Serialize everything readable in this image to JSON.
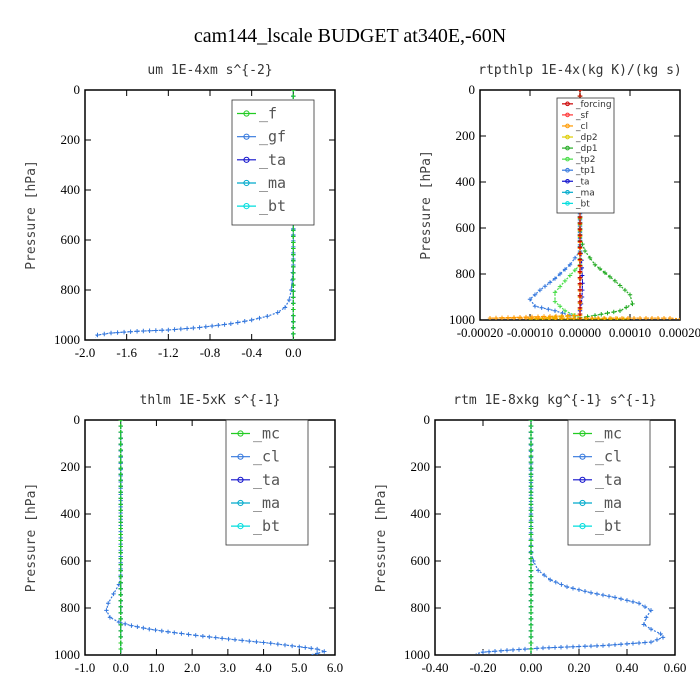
{
  "figure": {
    "title": "cam144_lscale  BUDGET at340E,-60N"
  },
  "chart_data": [
    {
      "type": "line",
      "title": "um  1E-4xm s^{-2}",
      "ylabel": "Pressure [hPa]",
      "xlabel": "",
      "xlim": [
        -2.0,
        0.4
      ],
      "ylim": [
        0,
        1000
      ],
      "y_inverted": true,
      "xticks": [
        -2.0,
        -1.6,
        -1.2,
        -0.8,
        -0.4,
        0.0
      ],
      "xtick_labels": [
        "-2.0",
        "-1.6",
        "-1.2",
        "-0.8",
        "-0.4",
        "0.0"
      ],
      "yticks": [
        0,
        200,
        400,
        600,
        800,
        1000
      ],
      "ytick_labels": [
        "0",
        "200",
        "400",
        "600",
        "800",
        "1000"
      ],
      "legend_position": "top-right",
      "series": [
        {
          "name": "_f",
          "color": "#22cc22",
          "points": [
            [
              0,
              0
            ],
            [
              0,
              1000
            ]
          ]
        },
        {
          "name": "_gf",
          "color": "#3377dd",
          "points": [
            [
              0,
              0
            ],
            [
              0,
              700
            ],
            [
              -0.01,
              760
            ],
            [
              -0.02,
              800
            ],
            [
              -0.04,
              840
            ],
            [
              -0.08,
              870
            ],
            [
              -0.15,
              890
            ],
            [
              -0.25,
              905
            ],
            [
              -0.4,
              920
            ],
            [
              -0.6,
              935
            ],
            [
              -0.9,
              950
            ],
            [
              -1.2,
              960
            ],
            [
              -1.5,
              965
            ],
            [
              -1.75,
              972
            ],
            [
              -1.88,
              980
            ],
            [
              -1.9,
              990
            ]
          ]
        },
        {
          "name": "_ta",
          "color": "#1111cc",
          "points": [
            [
              0,
              0
            ],
            [
              0,
              1000
            ]
          ]
        },
        {
          "name": "_ma",
          "color": "#00aacc",
          "points": [
            [
              0,
              0
            ],
            [
              0,
              1000
            ]
          ]
        },
        {
          "name": "_bt",
          "color": "#00dddd",
          "points": [
            [
              0,
              0
            ],
            [
              0,
              1000
            ]
          ]
        }
      ]
    },
    {
      "type": "line",
      "title": "rtpthlp  1E-4x(kg K)/(kg s)",
      "ylabel": "Pressure [hPa]",
      "xlabel": "",
      "xlim": [
        -0.0002,
        0.0002
      ],
      "ylim": [
        0,
        1000
      ],
      "y_inverted": true,
      "xticks": [
        -0.0002,
        -0.0001,
        0.0,
        0.0001,
        0.0002
      ],
      "xtick_labels": [
        "-0.00020",
        "-0.00010",
        "0.00000",
        "0.00010",
        "0.00020"
      ],
      "yticks": [
        0,
        200,
        400,
        600,
        800,
        1000
      ],
      "ytick_labels": [
        "0",
        "200",
        "400",
        "600",
        "800",
        "1000"
      ],
      "legend_position": "top-right",
      "series": [
        {
          "name": "_forcing",
          "color": "#cc0000",
          "points": [
            [
              0,
              0
            ],
            [
              0,
              1000
            ]
          ]
        },
        {
          "name": "_sf",
          "color": "#ff3333",
          "points": [
            [
              0,
              0
            ],
            [
              0,
              1000
            ]
          ]
        },
        {
          "name": "_cl",
          "color": "#ff9900",
          "points": [
            [
              0,
              0
            ],
            [
              0,
              980
            ],
            [
              -0.00018,
              992
            ],
            [
              0.00018,
              992
            ],
            [
              0.0002,
              995
            ]
          ]
        },
        {
          "name": "_dp2",
          "color": "#ddcc00",
          "points": [
            [
              0,
              0
            ],
            [
              0,
              980
            ],
            [
              -0.0001,
              995
            ],
            [
              0.0001,
              995
            ]
          ]
        },
        {
          "name": "_dp1",
          "color": "#22aa22",
          "points": [
            [
              0,
              0
            ],
            [
              0,
              640
            ],
            [
              1e-05,
              700
            ],
            [
              3e-05,
              760
            ],
            [
              7e-05,
              830
            ],
            [
              0.0001,
              890
            ],
            [
              0.000105,
              930
            ],
            [
              8e-05,
              960
            ],
            [
              3e-05,
              980
            ],
            [
              0,
              990
            ]
          ]
        },
        {
          "name": "_tp2",
          "color": "#44dd44",
          "points": [
            [
              0,
              0
            ],
            [
              0,
              760
            ],
            [
              -3e-05,
              830
            ],
            [
              -5e-05,
              880
            ],
            [
              -5e-05,
              920
            ],
            [
              -3e-05,
              960
            ],
            [
              -1e-05,
              980
            ],
            [
              0,
              990
            ]
          ]
        },
        {
          "name": "_tp1",
          "color": "#3377dd",
          "points": [
            [
              0,
              0
            ],
            [
              0,
              700
            ],
            [
              -2e-05,
              760
            ],
            [
              -5e-05,
              820
            ],
            [
              -8e-05,
              870
            ],
            [
              -0.0001,
              910
            ],
            [
              -9e-05,
              940
            ],
            [
              -5e-05,
              960
            ],
            [
              -2e-05,
              980
            ],
            [
              0,
              990
            ]
          ]
        },
        {
          "name": "_ta",
          "color": "#1111cc",
          "points": [
            [
              0,
              0
            ],
            [
              0,
              680
            ],
            [
              3e-06,
              740
            ],
            [
              5e-06,
              840
            ],
            [
              4e-06,
              900
            ],
            [
              0,
              960
            ],
            [
              0,
              1000
            ]
          ]
        },
        {
          "name": "_ma",
          "color": "#00aacc",
          "points": [
            [
              0,
              0
            ],
            [
              0,
              1000
            ]
          ]
        },
        {
          "name": "_bt",
          "color": "#00dddd",
          "points": [
            [
              0,
              0
            ],
            [
              0,
              1000
            ]
          ]
        }
      ]
    },
    {
      "type": "line",
      "title": "thlm  1E-5xK s^{-1}",
      "ylabel": "Pressure [hPa]",
      "xlabel": "",
      "xlim": [
        -1.0,
        6.0
      ],
      "ylim": [
        0,
        1000
      ],
      "y_inverted": true,
      "xticks": [
        -1.0,
        0.0,
        1.0,
        2.0,
        3.0,
        4.0,
        5.0,
        6.0
      ],
      "xtick_labels": [
        "-1.0",
        "0.0",
        "1.0",
        "2.0",
        "3.0",
        "4.0",
        "5.0",
        "6.0"
      ],
      "yticks": [
        0,
        200,
        400,
        600,
        800,
        1000
      ],
      "ytick_labels": [
        "0",
        "200",
        "400",
        "600",
        "800",
        "1000"
      ],
      "legend_position": "top-right",
      "series": [
        {
          "name": "_mc",
          "color": "#22cc22",
          "points": [
            [
              0,
              0
            ],
            [
              0,
              1000
            ]
          ]
        },
        {
          "name": "_cl",
          "color": "#3377dd",
          "points": [
            [
              0,
              0
            ],
            [
              0,
              660
            ],
            [
              -0.05,
              700
            ],
            [
              -0.2,
              740
            ],
            [
              -0.35,
              780
            ],
            [
              -0.4,
              810
            ],
            [
              -0.3,
              840
            ],
            [
              -0.05,
              860
            ],
            [
              0.3,
              875
            ],
            [
              0.8,
              890
            ],
            [
              1.5,
              905
            ],
            [
              2.3,
              920
            ],
            [
              3.2,
              935
            ],
            [
              4.2,
              950
            ],
            [
              5.0,
              965
            ],
            [
              5.5,
              975
            ],
            [
              5.7,
              985
            ],
            [
              5.5,
              993
            ],
            [
              5.3,
              1000
            ]
          ]
        },
        {
          "name": "_ta",
          "color": "#1111cc",
          "points": [
            [
              0,
              0
            ],
            [
              0,
              1000
            ]
          ]
        },
        {
          "name": "_ma",
          "color": "#00aacc",
          "points": [
            [
              0,
              0
            ],
            [
              0,
              1000
            ]
          ]
        },
        {
          "name": "_bt",
          "color": "#00dddd",
          "points": [
            [
              0,
              0
            ],
            [
              0,
              1000
            ]
          ]
        }
      ]
    },
    {
      "type": "line",
      "title": "rtm  1E-8xkg kg^{-1} s^{-1}",
      "ylabel": "Pressure [hPa]",
      "xlabel": "",
      "xlim": [
        -0.4,
        0.6
      ],
      "ylim": [
        0,
        1000
      ],
      "y_inverted": true,
      "xticks": [
        -0.4,
        -0.2,
        0.0,
        0.2,
        0.4,
        0.6
      ],
      "xtick_labels": [
        "-0.40",
        "-0.20",
        "0.00",
        "0.20",
        "0.40",
        "0.60"
      ],
      "yticks": [
        0,
        200,
        400,
        600,
        800,
        1000
      ],
      "ytick_labels": [
        "0",
        "200",
        "400",
        "600",
        "800",
        "1000"
      ],
      "legend_position": "top-right",
      "series": [
        {
          "name": "_mc",
          "color": "#22cc22",
          "points": [
            [
              0,
              0
            ],
            [
              0,
              1000
            ]
          ]
        },
        {
          "name": "_cl",
          "color": "#3377dd",
          "points": [
            [
              0,
              0
            ],
            [
              0,
              560
            ],
            [
              0.01,
              600
            ],
            [
              0.03,
              640
            ],
            [
              0.08,
              680
            ],
            [
              0.15,
              710
            ],
            [
              0.25,
              735
            ],
            [
              0.35,
              755
            ],
            [
              0.45,
              780
            ],
            [
              0.5,
              810
            ],
            [
              0.48,
              840
            ],
            [
              0.47,
              870
            ],
            [
              0.5,
              890
            ],
            [
              0.54,
              910
            ],
            [
              0.55,
              925
            ],
            [
              0.5,
              945
            ],
            [
              0.3,
              960
            ],
            [
              0.05,
              970
            ],
            [
              -0.1,
              980
            ],
            [
              -0.2,
              988
            ],
            [
              -0.23,
              995
            ]
          ]
        },
        {
          "name": "_ta",
          "color": "#1111cc",
          "points": [
            [
              0,
              0
            ],
            [
              0,
              1000
            ]
          ]
        },
        {
          "name": "_ma",
          "color": "#00aacc",
          "points": [
            [
              0,
              0
            ],
            [
              0,
              1000
            ]
          ]
        },
        {
          "name": "_bt",
          "color": "#00dddd",
          "points": [
            [
              0,
              0
            ],
            [
              0,
              1000
            ]
          ]
        }
      ]
    }
  ]
}
